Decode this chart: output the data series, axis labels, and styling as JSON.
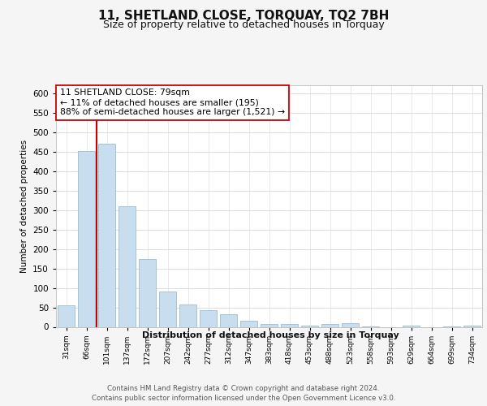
{
  "title": "11, SHETLAND CLOSE, TORQUAY, TQ2 7BH",
  "subtitle": "Size of property relative to detached houses in Torquay",
  "xlabel": "Distribution of detached houses by size in Torquay",
  "ylabel": "Number of detached properties",
  "bar_labels": [
    "31sqm",
    "66sqm",
    "101sqm",
    "137sqm",
    "172sqm",
    "207sqm",
    "242sqm",
    "277sqm",
    "312sqm",
    "347sqm",
    "383sqm",
    "418sqm",
    "453sqm",
    "488sqm",
    "523sqm",
    "558sqm",
    "593sqm",
    "629sqm",
    "664sqm",
    "699sqm",
    "734sqm"
  ],
  "bar_values": [
    55,
    452,
    470,
    310,
    175,
    90,
    58,
    42,
    32,
    15,
    7,
    8,
    3,
    7,
    10,
    2,
    0,
    3,
    0,
    2,
    3
  ],
  "bar_color": "#c8dded",
  "bar_edge_color": "#8ab4cf",
  "vline_color": "#cc0000",
  "annotation_line1": "11 SHETLAND CLOSE: 79sqm",
  "annotation_line2": "← 11% of detached houses are smaller (195)",
  "annotation_line3": "88% of semi-detached houses are larger (1,521) →",
  "annotation_box_color": "#ffffff",
  "annotation_box_edge": "#cc0000",
  "ylim": [
    0,
    620
  ],
  "yticks": [
    0,
    50,
    100,
    150,
    200,
    250,
    300,
    350,
    400,
    450,
    500,
    550,
    600
  ],
  "footer_line1": "Contains HM Land Registry data © Crown copyright and database right 2024.",
  "footer_line2": "Contains public sector information licensed under the Open Government Licence v3.0.",
  "bg_color": "#f5f5f5",
  "plot_bg_color": "#ffffff",
  "grid_color": "#d8d8d8",
  "title_fontsize": 11,
  "subtitle_fontsize": 9
}
